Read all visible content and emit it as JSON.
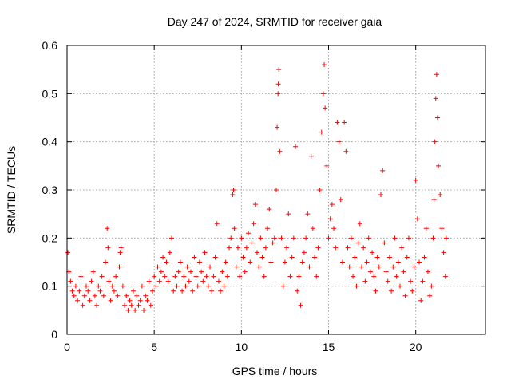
{
  "chart_data": {
    "type": "scatter",
    "title": "Day 247 of 2024, SRMTID for receiver gaia",
    "xlabel": "GPS time / hours",
    "ylabel": "SRMTID / TECUs",
    "xlim": [
      0,
      24
    ],
    "ylim": [
      0,
      0.6
    ],
    "x_ticks": [
      0,
      5,
      10,
      15,
      20
    ],
    "x_tick_labels": [
      "0",
      "5",
      "10",
      "15",
      "20"
    ],
    "y_ticks": [
      0,
      0.1,
      0.2,
      0.3,
      0.4,
      0.5,
      0.6
    ],
    "y_tick_labels": [
      "0",
      "0.1",
      "0.2",
      "0.3",
      "0.4",
      "0.5",
      "0.6"
    ],
    "grid": true,
    "marker": "+",
    "marker_color": "#ff0000",
    "series": [
      {
        "name": "SRMTID",
        "points": [
          [
            0.05,
            0.17
          ],
          [
            0.1,
            0.13
          ],
          [
            0.2,
            0.11
          ],
          [
            0.3,
            0.09
          ],
          [
            0.4,
            0.08
          ],
          [
            0.5,
            0.1
          ],
          [
            0.6,
            0.07
          ],
          [
            0.7,
            0.09
          ],
          [
            0.8,
            0.12
          ],
          [
            0.9,
            0.06
          ],
          [
            1.0,
            0.08
          ],
          [
            1.1,
            0.1
          ],
          [
            1.2,
            0.09
          ],
          [
            1.3,
            0.07
          ],
          [
            1.4,
            0.11
          ],
          [
            1.5,
            0.13
          ],
          [
            1.6,
            0.08
          ],
          [
            1.7,
            0.06
          ],
          [
            1.8,
            0.1
          ],
          [
            1.9,
            0.09
          ],
          [
            2.0,
            0.12
          ],
          [
            2.1,
            0.08
          ],
          [
            2.2,
            0.15
          ],
          [
            2.3,
            0.22
          ],
          [
            2.35,
            0.18
          ],
          [
            2.4,
            0.11
          ],
          [
            2.5,
            0.07
          ],
          [
            2.6,
            0.1
          ],
          [
            2.7,
            0.09
          ],
          [
            2.8,
            0.12
          ],
          [
            2.9,
            0.08
          ],
          [
            3.0,
            0.14
          ],
          [
            3.05,
            0.17
          ],
          [
            3.1,
            0.18
          ],
          [
            3.2,
            0.1
          ],
          [
            3.3,
            0.06
          ],
          [
            3.4,
            0.08
          ],
          [
            3.5,
            0.05
          ],
          [
            3.6,
            0.07
          ],
          [
            3.7,
            0.06
          ],
          [
            3.8,
            0.09
          ],
          [
            3.9,
            0.05
          ],
          [
            4.0,
            0.08
          ],
          [
            4.1,
            0.06
          ],
          [
            4.2,
            0.07
          ],
          [
            4.3,
            0.1
          ],
          [
            4.4,
            0.05
          ],
          [
            4.5,
            0.08
          ],
          [
            4.6,
            0.07
          ],
          [
            4.7,
            0.11
          ],
          [
            4.8,
            0.06
          ],
          [
            4.9,
            0.09
          ],
          [
            5.0,
            0.12
          ],
          [
            5.1,
            0.1
          ],
          [
            5.2,
            0.14
          ],
          [
            5.3,
            0.11
          ],
          [
            5.4,
            0.13
          ],
          [
            5.5,
            0.16
          ],
          [
            5.6,
            0.12
          ],
          [
            5.7,
            0.15
          ],
          [
            5.8,
            0.11
          ],
          [
            5.9,
            0.17
          ],
          [
            6.0,
            0.2
          ],
          [
            6.1,
            0.09
          ],
          [
            6.2,
            0.12
          ],
          [
            6.3,
            0.1
          ],
          [
            6.4,
            0.13
          ],
          [
            6.5,
            0.15
          ],
          [
            6.6,
            0.09
          ],
          [
            6.7,
            0.12
          ],
          [
            6.8,
            0.1
          ],
          [
            6.9,
            0.14
          ],
          [
            7.0,
            0.11
          ],
          [
            7.1,
            0.13
          ],
          [
            7.2,
            0.09
          ],
          [
            7.3,
            0.16
          ],
          [
            7.4,
            0.12
          ],
          [
            7.5,
            0.1
          ],
          [
            7.6,
            0.15
          ],
          [
            7.7,
            0.13
          ],
          [
            7.8,
            0.11
          ],
          [
            7.9,
            0.17
          ],
          [
            8.0,
            0.12
          ],
          [
            8.1,
            0.1
          ],
          [
            8.2,
            0.14
          ],
          [
            8.3,
            0.09
          ],
          [
            8.4,
            0.12
          ],
          [
            8.5,
            0.16
          ],
          [
            8.6,
            0.23
          ],
          [
            8.7,
            0.11
          ],
          [
            8.8,
            0.09
          ],
          [
            8.9,
            0.13
          ],
          [
            9.0,
            0.1
          ],
          [
            9.1,
            0.15
          ],
          [
            9.2,
            0.12
          ],
          [
            9.3,
            0.18
          ],
          [
            9.4,
            0.2
          ],
          [
            9.5,
            0.29
          ],
          [
            9.55,
            0.3
          ],
          [
            9.6,
            0.22
          ],
          [
            9.7,
            0.14
          ],
          [
            9.8,
            0.18
          ],
          [
            9.9,
            0.12
          ],
          [
            10.0,
            0.2
          ],
          [
            10.1,
            0.16
          ],
          [
            10.2,
            0.13
          ],
          [
            10.3,
            0.18
          ],
          [
            10.4,
            0.21
          ],
          [
            10.5,
            0.15
          ],
          [
            10.6,
            0.19
          ],
          [
            10.7,
            0.23
          ],
          [
            10.8,
            0.27
          ],
          [
            10.9,
            0.17
          ],
          [
            11.0,
            0.14
          ],
          [
            11.1,
            0.2
          ],
          [
            11.2,
            0.16
          ],
          [
            11.3,
            0.12
          ],
          [
            11.4,
            0.18
          ],
          [
            11.5,
            0.22
          ],
          [
            11.6,
            0.26
          ],
          [
            11.7,
            0.15
          ],
          [
            11.8,
            0.19
          ],
          [
            11.9,
            0.2
          ],
          [
            12.0,
            0.3
          ],
          [
            12.05,
            0.43
          ],
          [
            12.1,
            0.5
          ],
          [
            12.12,
            0.52
          ],
          [
            12.15,
            0.55
          ],
          [
            12.2,
            0.38
          ],
          [
            12.3,
            0.2
          ],
          [
            12.4,
            0.1
          ],
          [
            12.5,
            0.15
          ],
          [
            12.6,
            0.18
          ],
          [
            12.7,
            0.25
          ],
          [
            12.8,
            0.12
          ],
          [
            12.9,
            0.16
          ],
          [
            13.0,
            0.2
          ],
          [
            13.1,
            0.39
          ],
          [
            13.2,
            0.09
          ],
          [
            13.3,
            0.12
          ],
          [
            13.4,
            0.06
          ],
          [
            13.5,
            0.15
          ],
          [
            13.6,
            0.17
          ],
          [
            13.7,
            0.2
          ],
          [
            13.8,
            0.25
          ],
          [
            13.9,
            0.14
          ],
          [
            14.0,
            0.37
          ],
          [
            14.1,
            0.22
          ],
          [
            14.2,
            0.16
          ],
          [
            14.3,
            0.12
          ],
          [
            14.4,
            0.18
          ],
          [
            14.5,
            0.3
          ],
          [
            14.6,
            0.42
          ],
          [
            14.7,
            0.5
          ],
          [
            14.75,
            0.56
          ],
          [
            14.8,
            0.47
          ],
          [
            14.9,
            0.35
          ],
          [
            15.0,
            0.2
          ],
          [
            15.1,
            0.24
          ],
          [
            15.2,
            0.27
          ],
          [
            15.3,
            0.22
          ],
          [
            15.4,
            0.18
          ],
          [
            15.5,
            0.44
          ],
          [
            15.6,
            0.4
          ],
          [
            15.7,
            0.28
          ],
          [
            15.8,
            0.15
          ],
          [
            15.9,
            0.44
          ],
          [
            16.0,
            0.38
          ],
          [
            16.1,
            0.18
          ],
          [
            16.2,
            0.14
          ],
          [
            16.3,
            0.2
          ],
          [
            16.4,
            0.12
          ],
          [
            16.5,
            0.16
          ],
          [
            16.6,
            0.1
          ],
          [
            16.7,
            0.19
          ],
          [
            16.8,
            0.23
          ],
          [
            16.9,
            0.14
          ],
          [
            17.0,
            0.18
          ],
          [
            17.1,
            0.11
          ],
          [
            17.2,
            0.15
          ],
          [
            17.3,
            0.2
          ],
          [
            17.4,
            0.13
          ],
          [
            17.5,
            0.17
          ],
          [
            17.6,
            0.12
          ],
          [
            17.7,
            0.09
          ],
          [
            17.8,
            0.16
          ],
          [
            17.9,
            0.14
          ],
          [
            18.0,
            0.29
          ],
          [
            18.1,
            0.34
          ],
          [
            18.2,
            0.19
          ],
          [
            18.3,
            0.13
          ],
          [
            18.4,
            0.11
          ],
          [
            18.5,
            0.16
          ],
          [
            18.6,
            0.09
          ],
          [
            18.7,
            0.14
          ],
          [
            18.8,
            0.2
          ],
          [
            18.9,
            0.12
          ],
          [
            19.0,
            0.15
          ],
          [
            19.1,
            0.1
          ],
          [
            19.2,
            0.18
          ],
          [
            19.3,
            0.13
          ],
          [
            19.4,
            0.08
          ],
          [
            19.5,
            0.16
          ],
          [
            19.6,
            0.2
          ],
          [
            19.7,
            0.11
          ],
          [
            19.8,
            0.09
          ],
          [
            19.9,
            0.14
          ],
          [
            20.0,
            0.32
          ],
          [
            20.1,
            0.24
          ],
          [
            20.2,
            0.15
          ],
          [
            20.3,
            0.07
          ],
          [
            20.4,
            0.11
          ],
          [
            20.5,
            0.16
          ],
          [
            20.6,
            0.22
          ],
          [
            20.7,
            0.13
          ],
          [
            20.8,
            0.08
          ],
          [
            20.9,
            0.1
          ],
          [
            21.0,
            0.2
          ],
          [
            21.05,
            0.28
          ],
          [
            21.1,
            0.4
          ],
          [
            21.15,
            0.49
          ],
          [
            21.2,
            0.54
          ],
          [
            21.25,
            0.45
          ],
          [
            21.3,
            0.35
          ],
          [
            21.4,
            0.29
          ],
          [
            21.5,
            0.22
          ],
          [
            21.6,
            0.17
          ],
          [
            21.7,
            0.12
          ],
          [
            21.75,
            0.2
          ]
        ]
      }
    ]
  }
}
